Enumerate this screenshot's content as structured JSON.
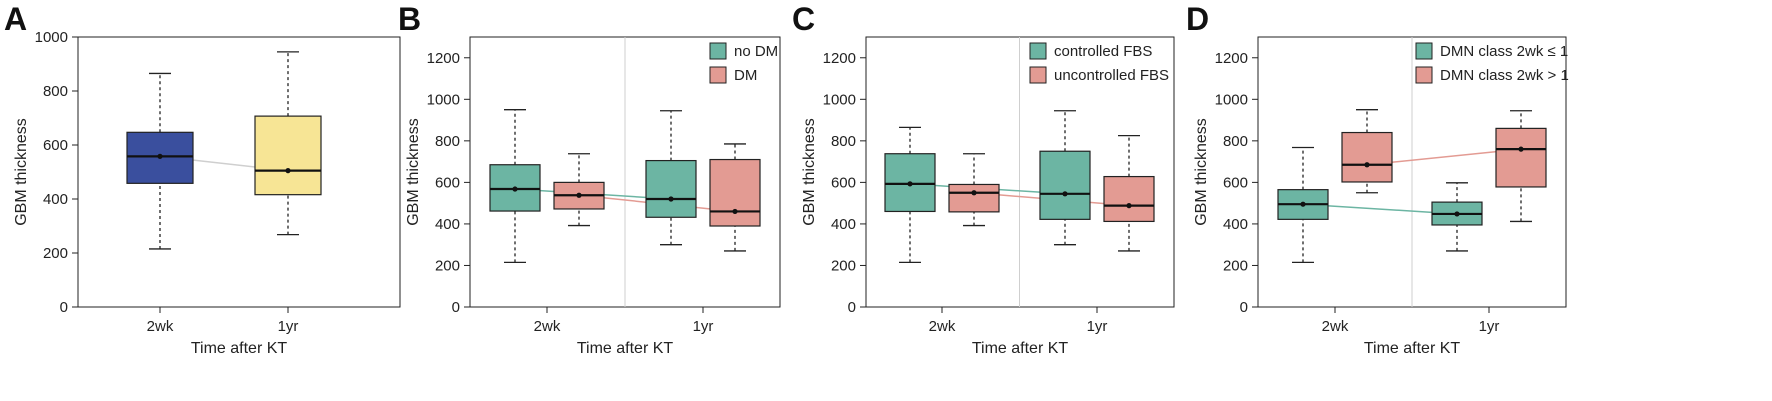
{
  "figure": {
    "panels": [
      "A",
      "B",
      "C",
      "D"
    ]
  },
  "chart_data": [
    {
      "panel": "A",
      "type": "box",
      "xlabel": "Time after KT",
      "ylabel": "GBM thickness",
      "ylim": [
        0,
        1000
      ],
      "yticks": [
        0,
        200,
        400,
        600,
        800,
        1000
      ],
      "categories": [
        "2wk",
        "1yr"
      ],
      "legend": null,
      "series": [
        {
          "name": "",
          "color": "#3a4f9e",
          "boxes": [
            {
              "category": "2wk",
              "min": 215,
              "q1": 458,
              "median": 558,
              "q3": 647,
              "max": 865,
              "mean": 558
            },
            {
              "category": "1yr",
              "min": 268,
              "q1": 416,
              "median": 505,
              "q3": 707,
              "max": 945,
              "mean": 505
            }
          ]
        }
      ],
      "box_colors": [
        "#3a4f9e",
        "#f7e595"
      ],
      "trend_color": "#cfcfcf",
      "divider": false
    },
    {
      "panel": "B",
      "type": "box",
      "xlabel": "Time after KT",
      "ylabel": "GBM thickness",
      "ylim": [
        0,
        1300
      ],
      "yticks": [
        0,
        200,
        400,
        600,
        800,
        1000,
        1200
      ],
      "categories": [
        "2wk",
        "1yr"
      ],
      "legend": {
        "position": "top-right"
      },
      "series": [
        {
          "name": "no DM",
          "color": "#6cb5a3",
          "boxes": [
            {
              "category": "2wk",
              "min": 215,
              "q1": 462,
              "median": 568,
              "q3": 685,
              "max": 950,
              "mean": 568
            },
            {
              "category": "1yr",
              "min": 300,
              "q1": 432,
              "median": 520,
              "q3": 705,
              "max": 945,
              "mean": 520
            }
          ]
        },
        {
          "name": "DM",
          "color": "#e39b93",
          "boxes": [
            {
              "category": "2wk",
              "min": 392,
              "q1": 472,
              "median": 538,
              "q3": 600,
              "max": 738,
              "mean": 538
            },
            {
              "category": "1yr",
              "min": 270,
              "q1": 390,
              "median": 460,
              "q3": 710,
              "max": 785,
              "mean": 460
            }
          ]
        }
      ],
      "divider": true
    },
    {
      "panel": "C",
      "type": "box",
      "xlabel": "Time after KT",
      "ylabel": "GBM thickness",
      "ylim": [
        0,
        1300
      ],
      "yticks": [
        0,
        200,
        400,
        600,
        800,
        1000,
        1200
      ],
      "categories": [
        "2wk",
        "1yr"
      ],
      "legend": {
        "position": "top-right"
      },
      "series": [
        {
          "name": "controlled FBS",
          "color": "#6cb5a3",
          "boxes": [
            {
              "category": "2wk",
              "min": 215,
              "q1": 460,
              "median": 593,
              "q3": 738,
              "max": 865,
              "mean": 593
            },
            {
              "category": "1yr",
              "min": 300,
              "q1": 422,
              "median": 545,
              "q3": 750,
              "max": 945,
              "mean": 545
            }
          ]
        },
        {
          "name": "uncontrolled FBS",
          "color": "#e39b93",
          "boxes": [
            {
              "category": "2wk",
              "min": 392,
              "q1": 458,
              "median": 550,
              "q3": 590,
              "max": 738,
              "mean": 550
            },
            {
              "category": "1yr",
              "min": 270,
              "q1": 412,
              "median": 488,
              "q3": 628,
              "max": 825,
              "mean": 488
            }
          ]
        }
      ],
      "divider": true
    },
    {
      "panel": "D",
      "type": "box",
      "xlabel": "Time after KT",
      "ylabel": "GBM thickness",
      "ylim": [
        0,
        1300
      ],
      "yticks": [
        0,
        200,
        400,
        600,
        800,
        1000,
        1200
      ],
      "categories": [
        "2wk",
        "1yr"
      ],
      "legend": {
        "position": "top-right"
      },
      "series": [
        {
          "name": "DMN class 2wk ≤ 1",
          "color": "#6cb5a3",
          "boxes": [
            {
              "category": "2wk",
              "min": 215,
              "q1": 422,
              "median": 495,
              "q3": 565,
              "max": 768,
              "mean": 495
            },
            {
              "category": "1yr",
              "min": 270,
              "q1": 395,
              "median": 448,
              "q3": 505,
              "max": 598,
              "mean": 448
            }
          ]
        },
        {
          "name": "DMN class 2wk > 1",
          "color": "#e39b93",
          "boxes": [
            {
              "category": "2wk",
              "min": 550,
              "q1": 602,
              "median": 685,
              "q3": 840,
              "max": 950,
              "mean": 685
            },
            {
              "category": "1yr",
              "min": 412,
              "q1": 578,
              "median": 760,
              "q3": 860,
              "max": 945,
              "mean": 760
            }
          ]
        }
      ],
      "divider": true
    }
  ]
}
